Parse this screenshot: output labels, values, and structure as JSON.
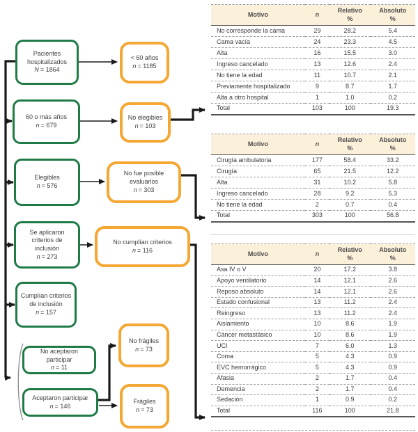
{
  "flowchart": {
    "colors": {
      "green": "#1E7B46",
      "orange": "#F4A732"
    },
    "green_boxes": [
      {
        "label": "Pacientes hospitalizados",
        "var": "N",
        "eq": "= 1864"
      },
      {
        "label": "60 o más años",
        "var": "n",
        "eq": "= 679"
      },
      {
        "label": "Elegibles",
        "var": "n",
        "eq": "= 576"
      },
      {
        "label": "Se aplicaron criterios de inclusión",
        "var": "n",
        "eq": "= 273"
      },
      {
        "label": "Cumplían criterios de inclusión",
        "var": "n",
        "eq": "= 157"
      },
      {
        "label": "No aceptaron participar",
        "var": "n",
        "eq": "= 11"
      },
      {
        "label": "Aceptaron participar",
        "var": "n",
        "eq": "= 146"
      }
    ],
    "orange_boxes": [
      {
        "label": "< 60 años",
        "var": "n",
        "eq": "= 1185"
      },
      {
        "label": "No elegibles",
        "var": "n",
        "eq": "= 103"
      },
      {
        "label": "No fue posible evaluarlos",
        "var": "n",
        "eq": "= 303"
      },
      {
        "label": "No cumplían criterios",
        "var": "n",
        "eq": "= 116"
      },
      {
        "label": "No frágiles",
        "var": "n",
        "eq": "= 73"
      },
      {
        "label": "Frágiles",
        "var": "n",
        "eq": "= 73"
      }
    ]
  },
  "tables": [
    {
      "header": {
        "motivo": "Motivo",
        "n": "n",
        "relativo": "Relativo",
        "absoluto": "Absoluto",
        "pct": "%"
      },
      "rows": [
        [
          "No corresponde la cama",
          "29",
          "28.2",
          "5.4"
        ],
        [
          "Cama vacía",
          "24",
          "23.3",
          "4.5"
        ],
        [
          "Alta",
          "16",
          "15.5",
          "3.0"
        ],
        [
          "Ingreso cancelado",
          "13",
          "12.6",
          "2.4"
        ],
        [
          "No tiene la edad",
          "11",
          "10.7",
          "2.1"
        ],
        [
          "Previamente hospitalizado",
          "9",
          "8.7",
          "1.7"
        ],
        [
          "Alta a otro hospital",
          "1",
          "1.0",
          "0.2"
        ],
        [
          "Total",
          "103",
          "100",
          "19.3"
        ]
      ]
    },
    {
      "header": {
        "motivo": "Motivo",
        "n": "n",
        "relativo": "Relativo",
        "absoluto": "Absoluto",
        "pct": "%"
      },
      "rows": [
        [
          "Cirugía ambulatoria",
          "177",
          "58.4",
          "33.2"
        ],
        [
          "Cirugía",
          "65",
          "21.5",
          "12.2"
        ],
        [
          "Alta",
          "31",
          "10.2",
          "5.8"
        ],
        [
          "Ingreso cancelado",
          "28",
          "9.2",
          "5.3"
        ],
        [
          "No tiene la edad",
          "2",
          "0.7",
          "0.4"
        ],
        [
          "Total",
          "303",
          "100",
          "56.8"
        ]
      ]
    },
    {
      "header": {
        "motivo": "Motivo",
        "n": "n",
        "relativo": "Relativo",
        "absoluto": "Absoluto",
        "pct": "%"
      },
      "rows": [
        [
          "Asa IV o V",
          "20",
          "17.2",
          "3.8"
        ],
        [
          "Apoyo ventilatorio",
          "14",
          "12.1",
          "2.6"
        ],
        [
          "Reposo absoluto",
          "14",
          "12.1",
          "2.6"
        ],
        [
          "Estado confusional",
          "13",
          "11.2",
          "2.4"
        ],
        [
          "Reingreso",
          "13",
          "11.2",
          "2.4"
        ],
        [
          "Aislamiento",
          "10",
          "8.6",
          "1.9"
        ],
        [
          "Cáncer metastásico",
          "10",
          "8.6",
          "1.9"
        ],
        [
          "UCI",
          "7",
          "6.0",
          "1.3"
        ],
        [
          "Coma",
          "5",
          "4.3",
          "0.9"
        ],
        [
          "EVC hemorrágico",
          "5",
          "4.3",
          "0.9"
        ],
        [
          "Afasia",
          "2",
          "1.7",
          "0.4"
        ],
        [
          "Demencia",
          "2",
          "1.7",
          "0.4"
        ],
        [
          "Sedación",
          "1",
          "0.9",
          "0.2"
        ],
        [
          "Total",
          "116",
          "100",
          "21.8"
        ]
      ]
    }
  ]
}
